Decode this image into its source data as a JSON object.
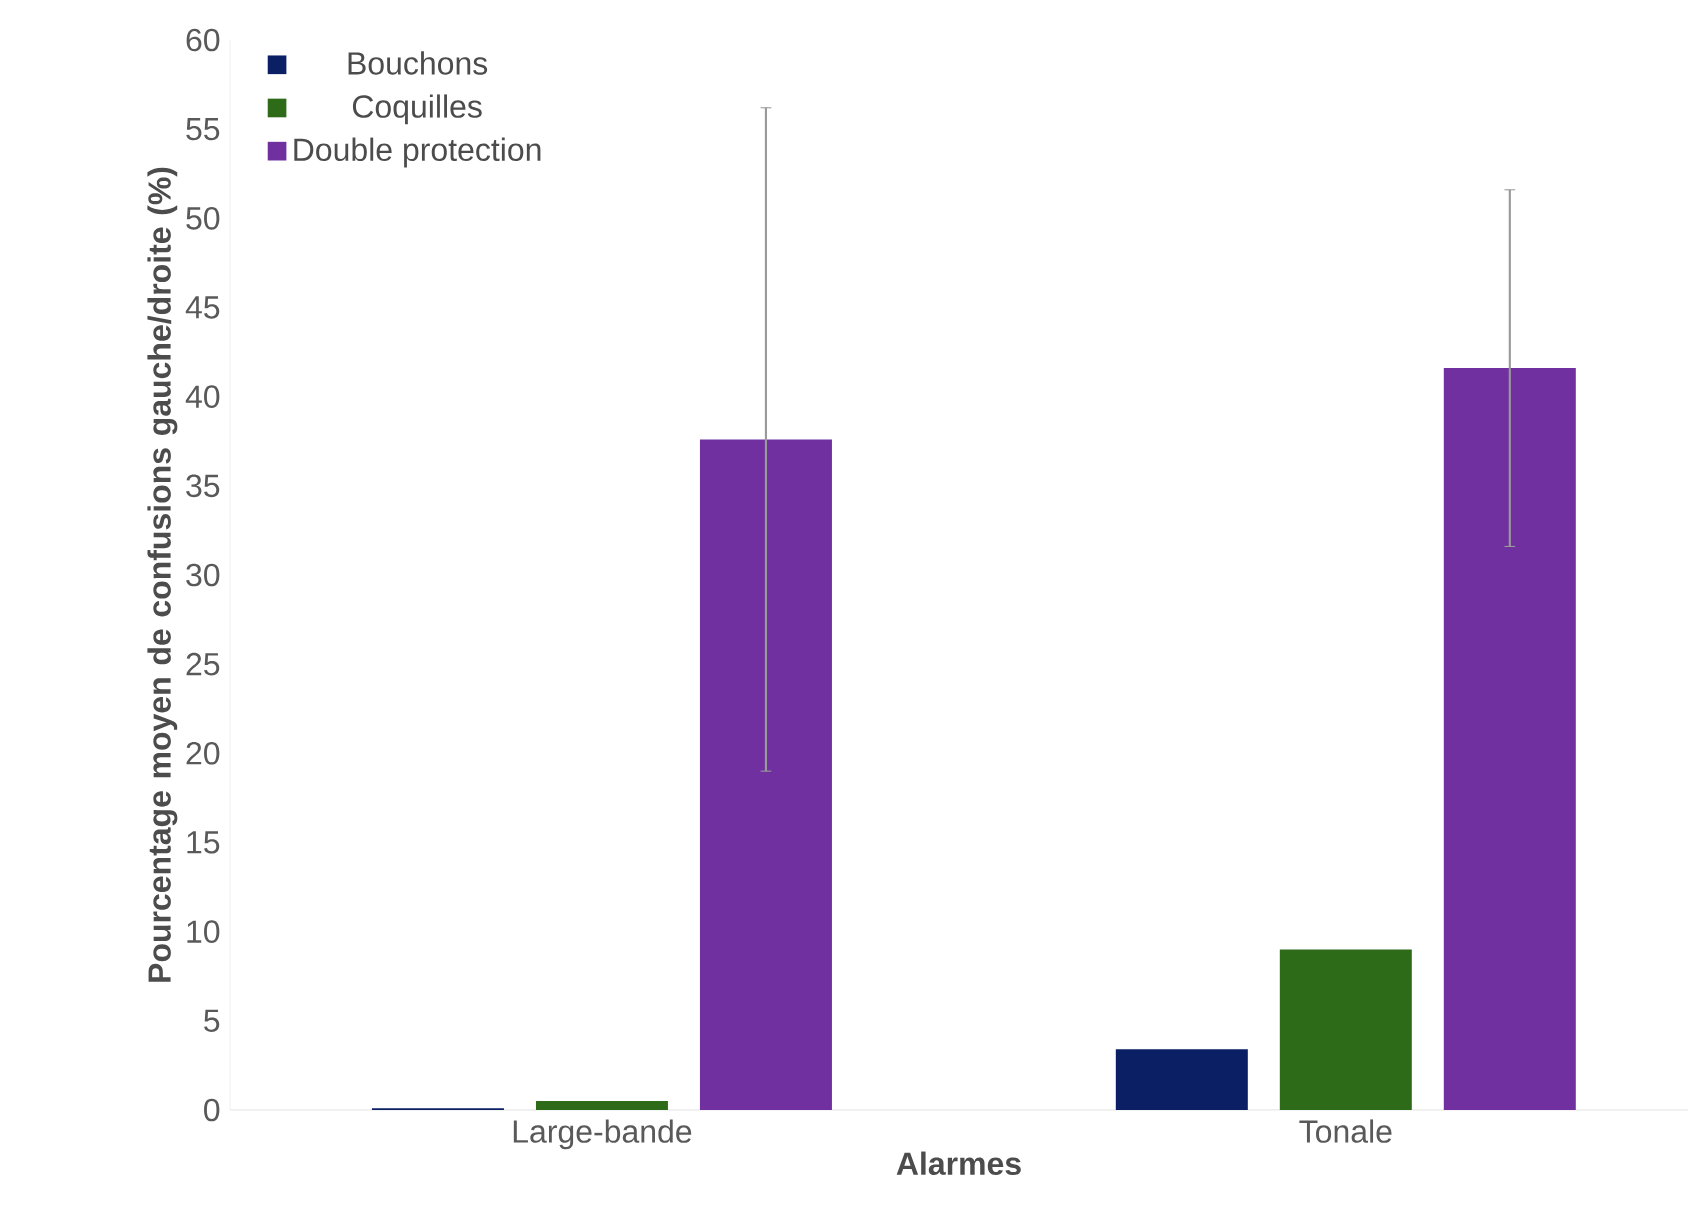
{
  "chart_data": {
    "type": "bar",
    "xlabel": "Alarmes",
    "ylabel": "Pourcentage moyen de confusions gauche/droite (%)",
    "categories": [
      "Large-bande",
      "Tonale"
    ],
    "series": [
      {
        "name": "Bouchons",
        "color": "#0b1f64",
        "values": [
          0.1,
          3.4
        ]
      },
      {
        "name": "Coquilles",
        "color": "#2e6b19",
        "values": [
          0.5,
          9.0
        ]
      },
      {
        "name": "Double protection",
        "color": "#70309f",
        "values": [
          37.6,
          41.6
        ],
        "errors": [
          18.6,
          10
        ]
      }
    ],
    "ylim": [
      0,
      60
    ],
    "yticks": [
      0,
      5,
      10,
      15,
      20,
      25,
      30,
      35,
      40,
      45,
      50,
      55,
      60
    ],
    "grid": false,
    "legend": "top left"
  }
}
